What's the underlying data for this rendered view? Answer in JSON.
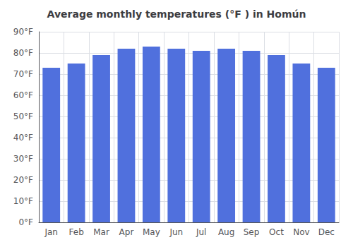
{
  "chart_data": {
    "type": "bar",
    "title": "Average monthly temperatures (°F ) in Homún",
    "categories": [
      "Jan",
      "Feb",
      "Mar",
      "Apr",
      "May",
      "Jun",
      "Jul",
      "Aug",
      "Sep",
      "Oct",
      "Nov",
      "Dec"
    ],
    "values": [
      73,
      75,
      79,
      82,
      83,
      82,
      81,
      82,
      81,
      79,
      75,
      73
    ],
    "ylim": [
      0,
      90
    ],
    "yticks": [
      {
        "value": 0,
        "label": "0°F"
      },
      {
        "value": 10,
        "label": "10°F"
      },
      {
        "value": 20,
        "label": "20°F"
      },
      {
        "value": 30,
        "label": "30°F"
      },
      {
        "value": 40,
        "label": "40°F"
      },
      {
        "value": 50,
        "label": "50°F"
      },
      {
        "value": 60,
        "label": "60°F"
      },
      {
        "value": 70,
        "label": "70°F"
      },
      {
        "value": 80,
        "label": "80°F"
      },
      {
        "value": 90,
        "label": "90°F"
      }
    ],
    "grid": true
  }
}
